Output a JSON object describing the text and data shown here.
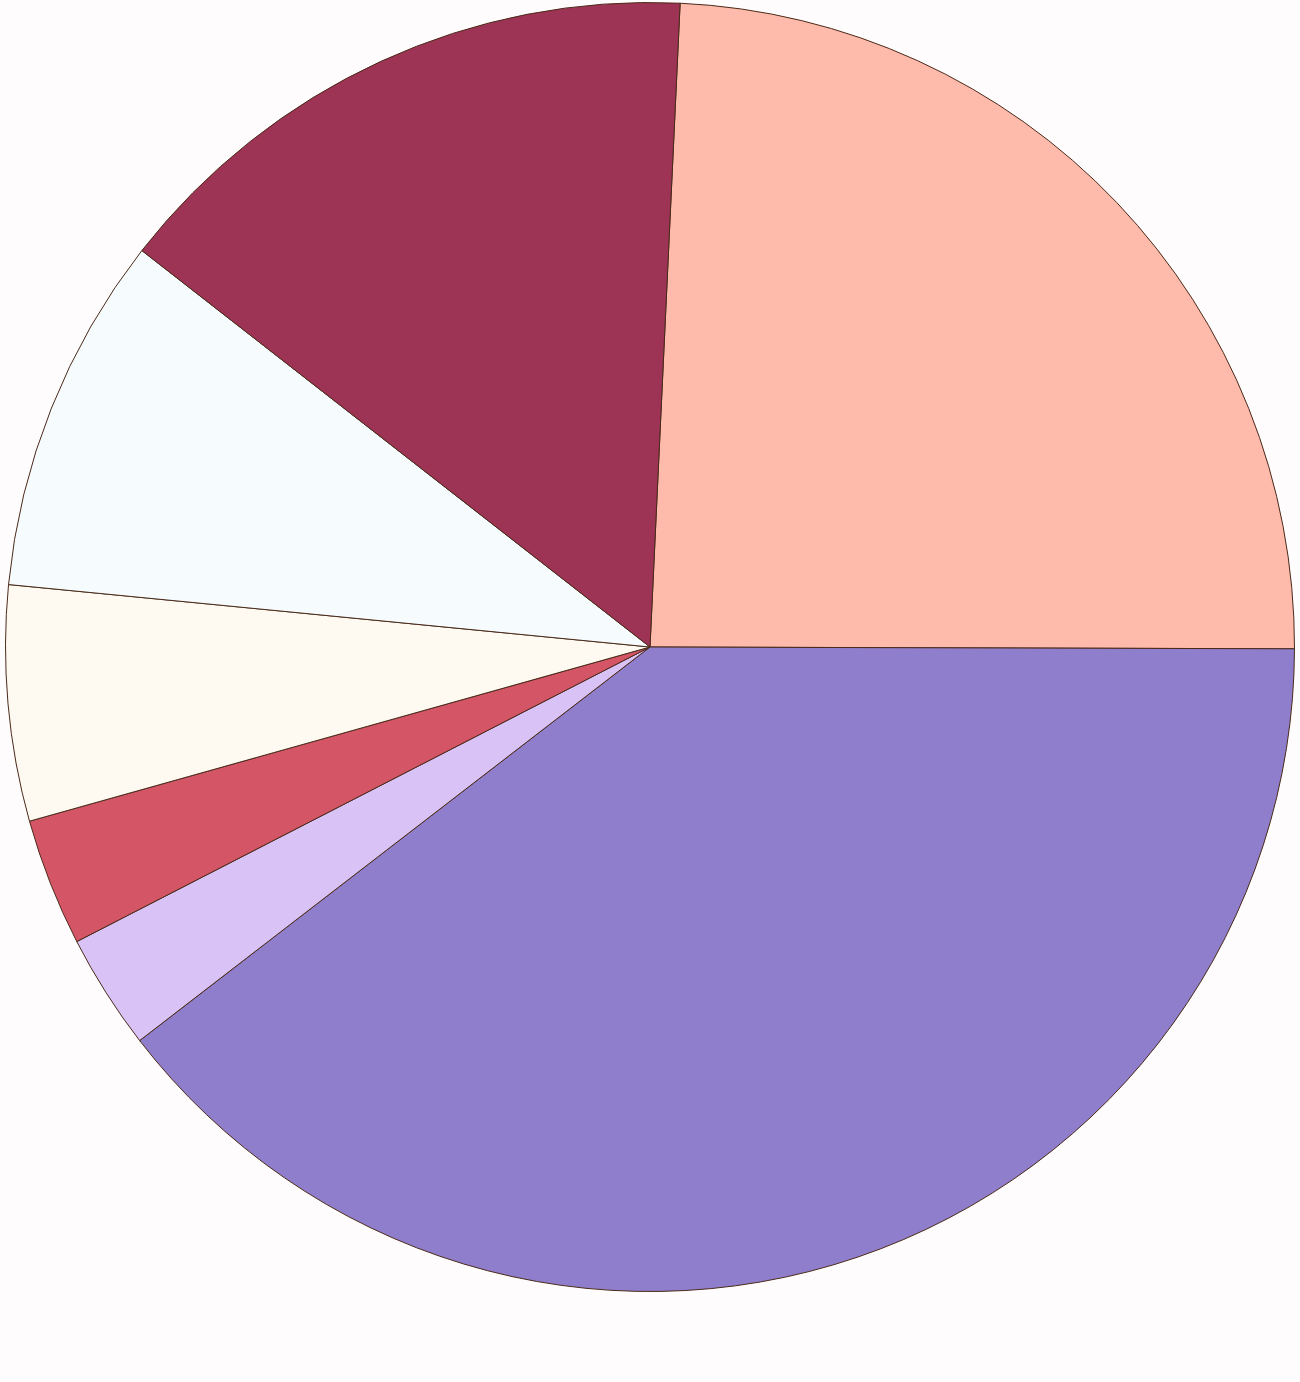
{
  "chart_data": {
    "type": "pie",
    "categories": [
      null,
      null,
      null,
      null,
      null,
      null,
      null
    ],
    "values": [
      24.3,
      39.5,
      2.9,
      3.2,
      5.9,
      9.0,
      15.2
    ],
    "colors": [
      "#febaab",
      "#8f7ecb",
      "#d9c2f5",
      "#d45566",
      "#fefaf2",
      "#f6fbfd",
      "#9e3455"
    ]
  }
}
